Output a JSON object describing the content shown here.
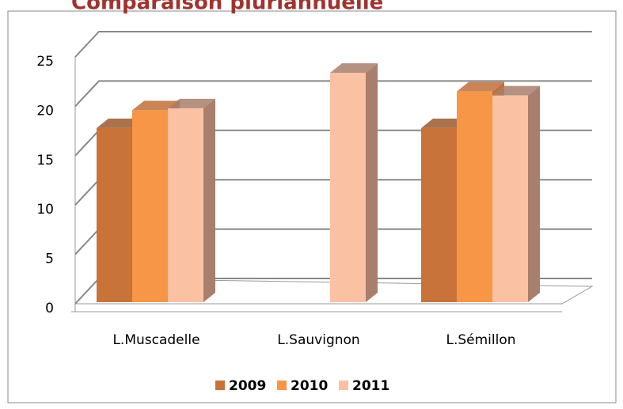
{
  "chart_data": {
    "type": "bar3d",
    "title": "Comparaison pluriannuelle",
    "categories": [
      "L.Muscadelle",
      "L.Sauvignon",
      "L.Sémillon"
    ],
    "series": [
      {
        "name": "2009",
        "color": "#c8733a",
        "side": "#9c5a2e",
        "values": [
          17.8,
          null,
          17.8
        ]
      },
      {
        "name": "2010",
        "color": "#f79646",
        "side": "#c0703a",
        "values": [
          19.6,
          null,
          21.5
        ]
      },
      {
        "name": "2011",
        "color": "#fac1a2",
        "side": "#a87e6c",
        "values": [
          19.8,
          23.4,
          21.1
        ]
      }
    ],
    "ylim": [
      0,
      25
    ],
    "yticks": [
      0,
      5,
      10,
      15,
      20,
      25
    ],
    "grid": true,
    "legend": "bottom"
  }
}
